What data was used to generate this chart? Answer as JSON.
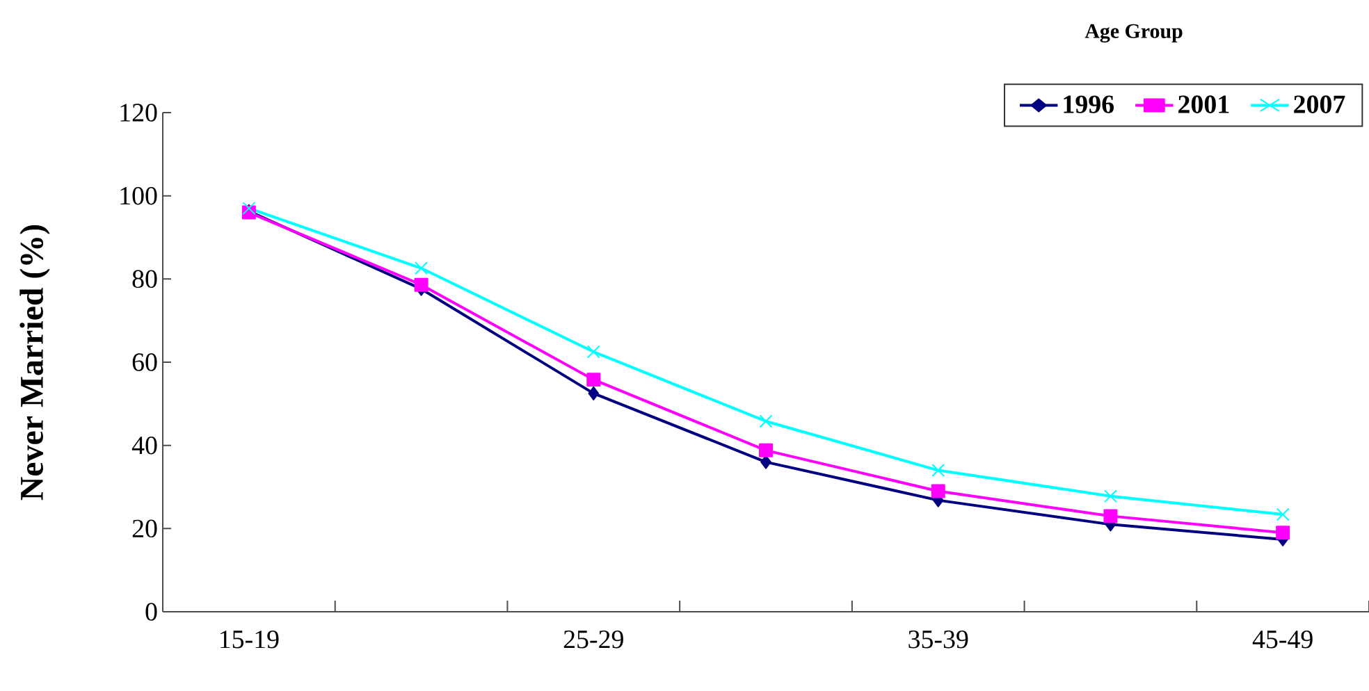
{
  "chart_data": {
    "type": "line",
    "xlabel": "Age Group",
    "ylabel": "Never Married (%)",
    "categories": [
      "15-19",
      null,
      "25-29",
      null,
      "35-39",
      null,
      "45-49"
    ],
    "ylim": [
      0,
      120
    ],
    "yticks": [
      0,
      20,
      40,
      60,
      80,
      100,
      120
    ],
    "legend": "top right",
    "series": [
      {
        "name": "1996",
        "color": "#000080",
        "marker": "diamond",
        "values": [
          96.3,
          77.6,
          52.5,
          36,
          26.8,
          21,
          17.4
        ]
      },
      {
        "name": "2001",
        "color": "#ff00ff",
        "marker": "square",
        "values": [
          96,
          78.6,
          55.8,
          38.8,
          29,
          23,
          19
        ]
      },
      {
        "name": "2007",
        "color": "#00ffff",
        "marker": "cross",
        "values": [
          97,
          82.6,
          62.5,
          45.8,
          34,
          27.8,
          23.4
        ]
      }
    ]
  }
}
